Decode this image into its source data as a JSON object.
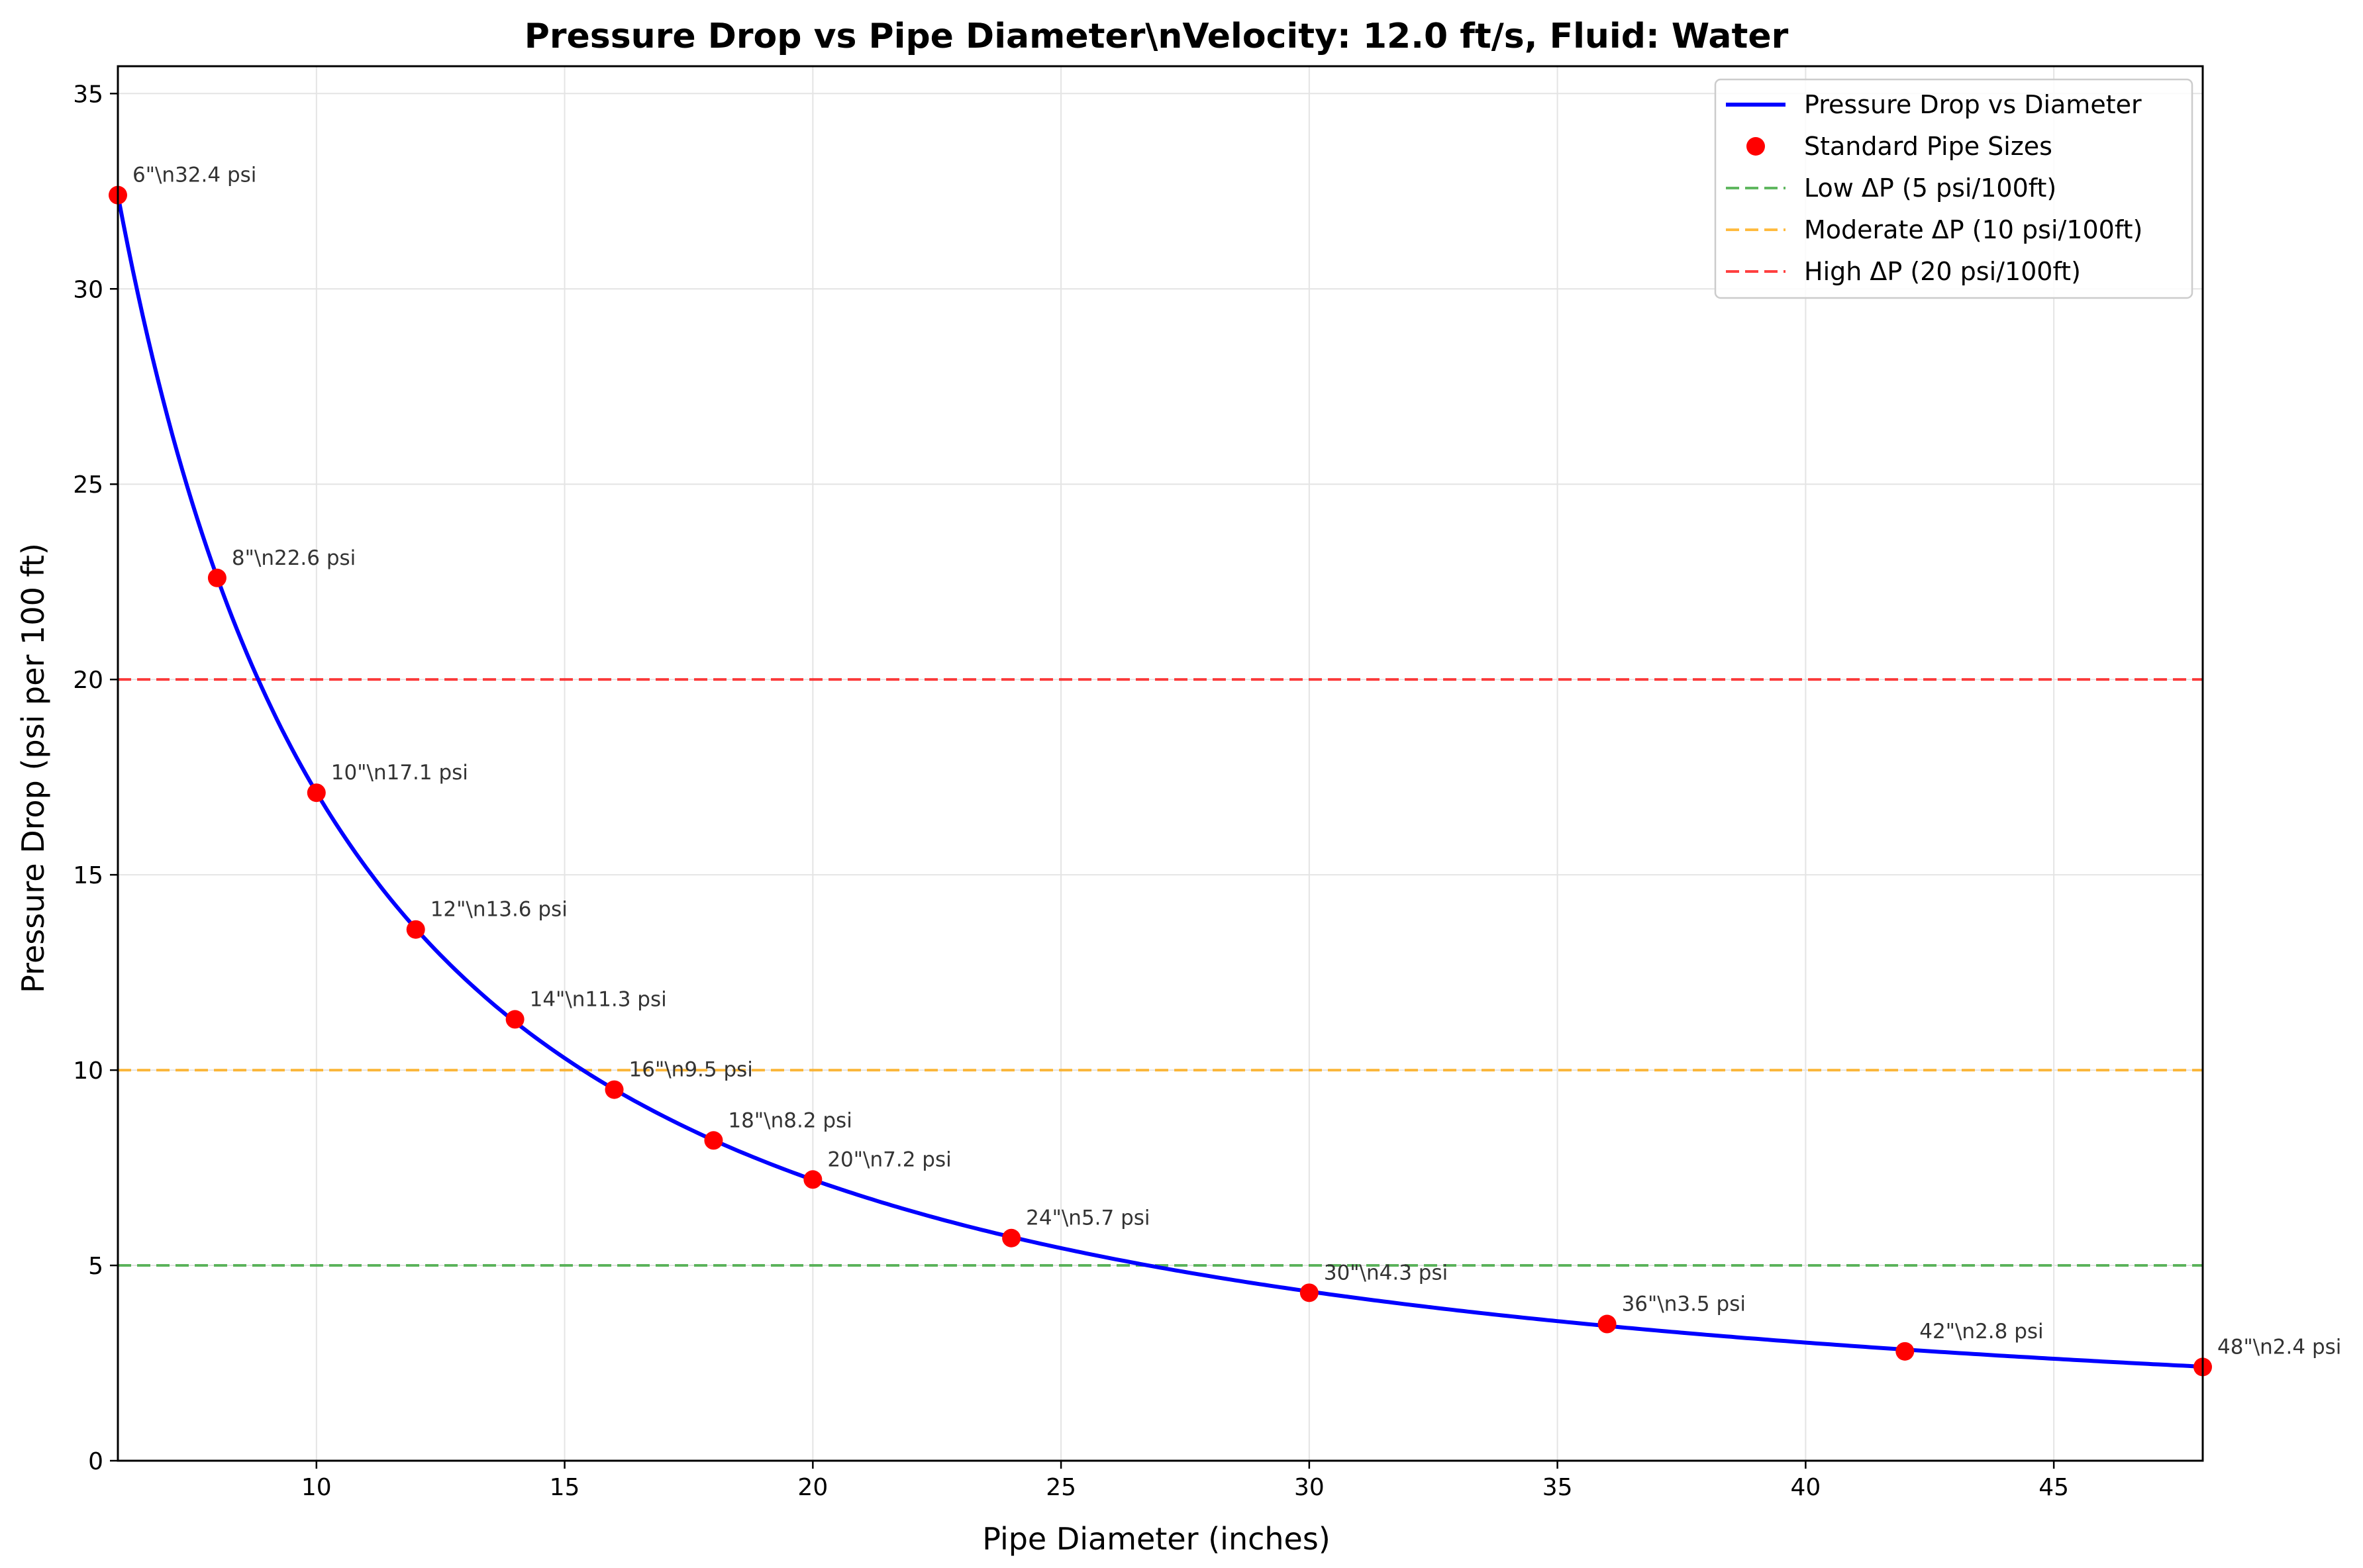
{
  "chart_data": {
    "type": "line",
    "title": "Pressure Drop vs Pipe Diameter\\nVelocity: 12.0 ft/s, Fluid: Water",
    "xlabel": "Pipe Diameter (inches)",
    "ylabel": "Pressure Drop (psi per 100 ft)",
    "xlim": [
      6,
      48
    ],
    "ylim": [
      0,
      35.7
    ],
    "xticks": [
      10,
      15,
      20,
      25,
      30,
      35,
      40,
      45
    ],
    "yticks": [
      0,
      5,
      10,
      15,
      20,
      25,
      30,
      35
    ],
    "grid": true,
    "legend_position": "top-right",
    "series": [
      {
        "name": "Pressure Drop vs Diameter",
        "kind": "line",
        "color": "#0000ff",
        "formula": "32.4 * (6 / d)^1.25"
      },
      {
        "name": "Standard Pipe Sizes",
        "kind": "scatter",
        "color": "#ff0000",
        "x": [
          6,
          8,
          10,
          12,
          14,
          16,
          18,
          20,
          24,
          30,
          36,
          42,
          48
        ],
        "y": [
          32.4,
          22.6,
          17.1,
          13.6,
          11.3,
          9.5,
          8.2,
          7.2,
          5.7,
          4.3,
          3.5,
          2.8,
          2.4
        ]
      }
    ],
    "reference_lines": [
      {
        "name": "Low ΔP (5 psi/100ft)",
        "y": 5,
        "color": "#2ca02c"
      },
      {
        "name": "Moderate ΔP (10 psi/100ft)",
        "y": 10,
        "color": "#ffa500"
      },
      {
        "name": "High ΔP (20 psi/100ft)",
        "y": 20,
        "color": "#ff0000"
      }
    ],
    "annotations": [
      "6\"\\n32.4 psi",
      "8\"\\n22.6 psi",
      "10\"\\n17.1 psi",
      "12\"\\n13.6 psi",
      "14\"\\n11.3 psi",
      "16\"\\n9.5 psi",
      "18\"\\n8.2 psi",
      "20\"\\n7.2 psi",
      "24\"\\n5.7 psi",
      "30\"\\n4.3 psi",
      "36\"\\n3.5 psi",
      "42\"\\n2.8 psi",
      "48\"\\n2.4 psi"
    ]
  }
}
